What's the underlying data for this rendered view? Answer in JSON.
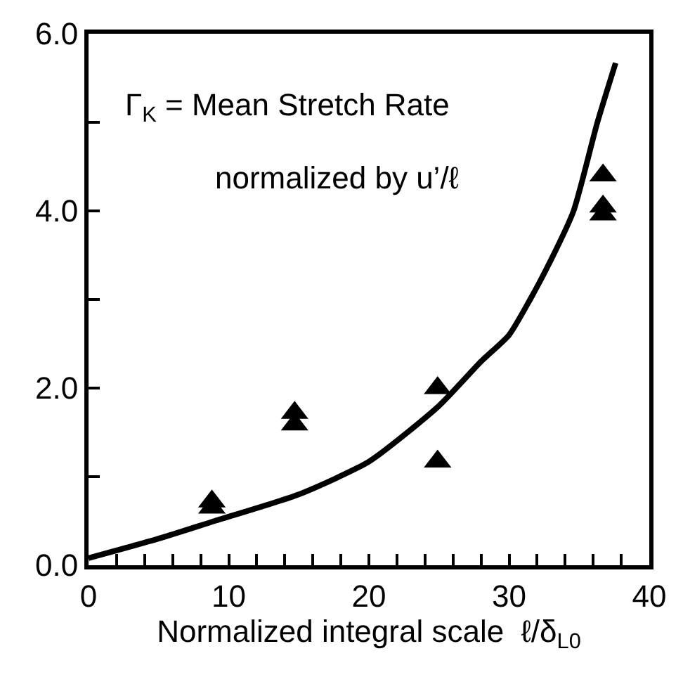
{
  "chart_data": {
    "type": "scatter",
    "xlabel": "Normalized integral scale  ℓ/δ$_{L0}$",
    "annotations": [
      "Γ$_{K}$ = Mean Stretch Rate",
      "normalized by u’/ℓ"
    ],
    "series": [
      {
        "marker": "triangle",
        "color": "#000000",
        "x": [
          8.8,
          8.8,
          14.7,
          14.7,
          24.9,
          24.9,
          36.7,
          36.7,
          36.7
        ],
        "values": [
          0.72,
          0.65,
          1.72,
          1.59,
          2.0,
          1.17,
          4.4,
          4.05,
          3.96
        ]
      },
      {
        "type": "line",
        "marker": "none",
        "line_style": "solid",
        "color": "#000000",
        "x": [
          0,
          5,
          9,
          15,
          20,
          25,
          28,
          30,
          31.5,
          33,
          34.6,
          36.3,
          37.6
        ],
        "values": [
          0.08,
          0.3,
          0.5,
          0.8,
          1.17,
          1.8,
          2.3,
          2.6,
          3.0,
          3.45,
          4.0,
          5.0,
          5.67
        ]
      }
    ],
    "xlim": [
      0,
      40
    ],
    "xticks": [
      0,
      {
        "value": 2,
        "label": null
      },
      {
        "value": 4,
        "label": null
      },
      {
        "value": 6,
        "label": null
      },
      {
        "value": 8,
        "label": null
      },
      10,
      {
        "value": 12,
        "label": null
      },
      {
        "value": 14,
        "label": null
      },
      {
        "value": 16,
        "label": null
      },
      {
        "value": 18,
        "label": null
      },
      20,
      {
        "value": 22,
        "label": null
      },
      {
        "value": 24,
        "label": null
      },
      {
        "value": 26,
        "label": null
      },
      {
        "value": 28,
        "label": null
      },
      30,
      {
        "value": 32,
        "label": null
      },
      {
        "value": 34,
        "label": null
      },
      {
        "value": 36,
        "label": null
      },
      {
        "value": 38,
        "label": null
      },
      40
    ],
    "ylim": [
      0,
      6
    ],
    "yticks": [
      {
        "value": 0,
        "label": "0.0"
      },
      {
        "value": 1,
        "label": null
      },
      {
        "value": 2,
        "label": "2.0"
      },
      {
        "value": 3,
        "label": null
      },
      {
        "value": 4,
        "label": "4.0"
      },
      {
        "value": 5,
        "label": null
      },
      {
        "value": 6,
        "label": "6.0"
      }
    ]
  }
}
